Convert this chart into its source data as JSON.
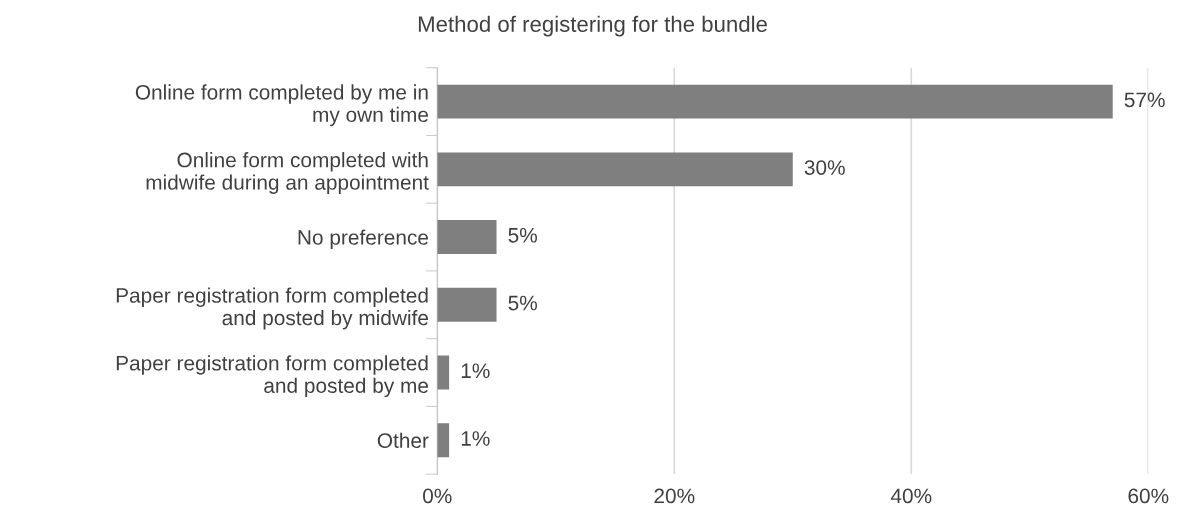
{
  "chart_data": {
    "type": "bar",
    "orientation": "horizontal",
    "title": "Method of registering for the bundle",
    "categories": [
      "Online form completed by me in\nmy own time",
      "Online form completed with\nmidwife during an appointment",
      "No preference",
      "Paper registration form completed\nand posted by midwife",
      "Paper registration form completed\nand posted by me",
      "Other"
    ],
    "values": [
      57,
      30,
      5,
      5,
      1,
      1
    ],
    "value_labels": [
      "57%",
      "30%",
      "5%",
      "5%",
      "1%",
      "1%"
    ],
    "color": "#7f7f7f",
    "xlim": [
      0,
      60
    ],
    "xticks": [
      {
        "value": 0,
        "label": "0%"
      },
      {
        "value": 20,
        "label": "20%"
      },
      {
        "value": 40,
        "label": "40%"
      },
      {
        "value": 60,
        "label": "60%"
      }
    ],
    "grid": "x",
    "legend": false
  }
}
